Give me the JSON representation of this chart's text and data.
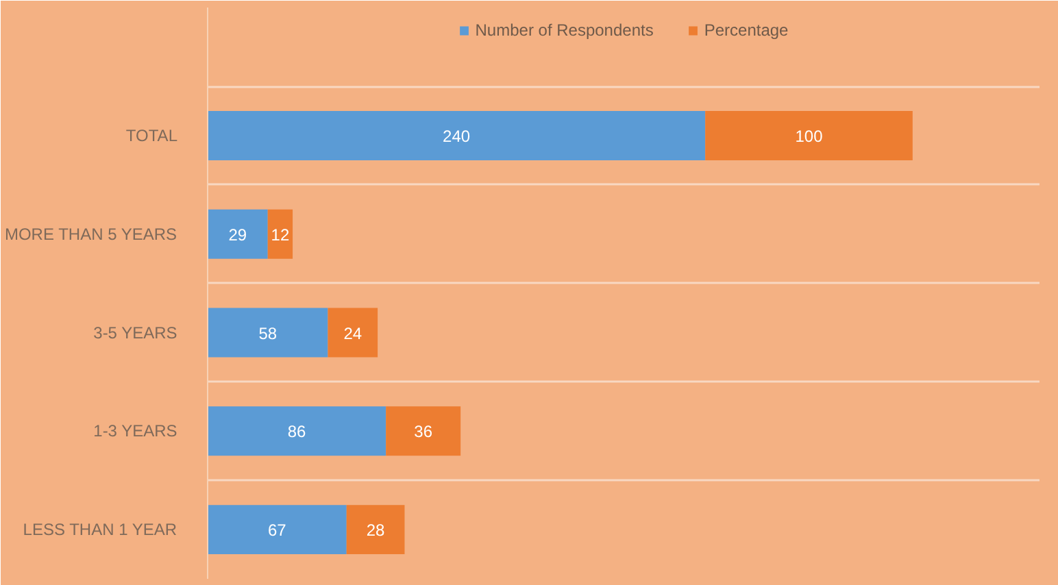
{
  "chart_data": {
    "type": "bar",
    "orientation": "horizontal",
    "stacked": true,
    "categories": [
      "TOTAL",
      "MORE THAN 5 YEARS",
      "3-5 YEARS",
      "1-3 YEARS",
      "LESS THAN 1 YEAR"
    ],
    "series": [
      {
        "name": "Number of Respondents",
        "color": "#5b9bd5",
        "values": [
          240,
          29,
          58,
          86,
          67
        ]
      },
      {
        "name": "Percentage",
        "color": "#ed7d31",
        "values": [
          100,
          12,
          24,
          36,
          28
        ]
      }
    ],
    "data_labels": true,
    "grid": "y",
    "legend": "top"
  }
}
